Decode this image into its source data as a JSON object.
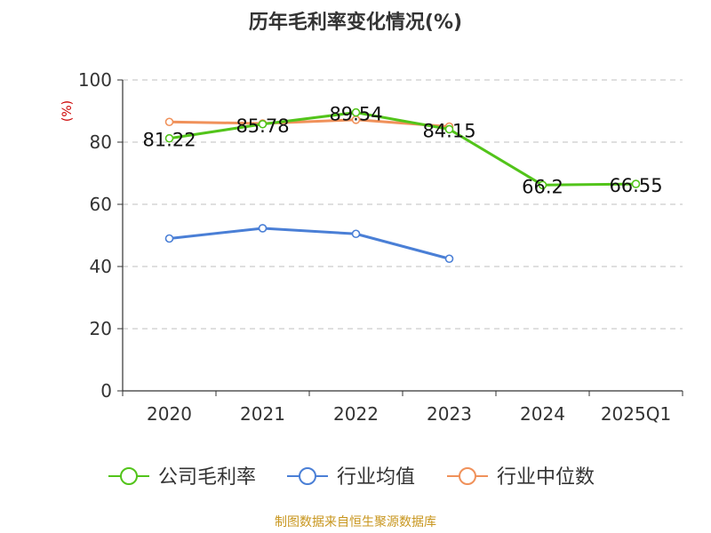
{
  "chart_data": {
    "type": "line",
    "title": "历年毛利率变化情况(%)",
    "ylabel": "(%)",
    "xlabel": "",
    "categories": [
      "2020",
      "2021",
      "2022",
      "2023",
      "2024",
      "2025Q1"
    ],
    "ylim": [
      0,
      100
    ],
    "yticks": [
      "0",
      "20",
      "40",
      "60",
      "80",
      "100"
    ],
    "grid": true,
    "legend_position": "bottom",
    "series": [
      {
        "name": "公司毛利率",
        "color": "#52c41a",
        "values": [
          81.22,
          85.78,
          89.54,
          84.15,
          66.2,
          66.55
        ],
        "labels": [
          "81.22",
          "85.78",
          "89.54",
          "84.15",
          "66.2",
          "66.55"
        ]
      },
      {
        "name": "行业均值",
        "color": "#4a7fd6",
        "values": [
          49.0,
          52.3,
          50.5,
          42.5,
          null,
          null
        ]
      },
      {
        "name": "行业中位数",
        "color": "#f0915a",
        "values": [
          86.5,
          86.0,
          87.2,
          85.0,
          null,
          null
        ]
      }
    ]
  },
  "footer": {
    "source": "制图数据来自恒生聚源数据库"
  }
}
